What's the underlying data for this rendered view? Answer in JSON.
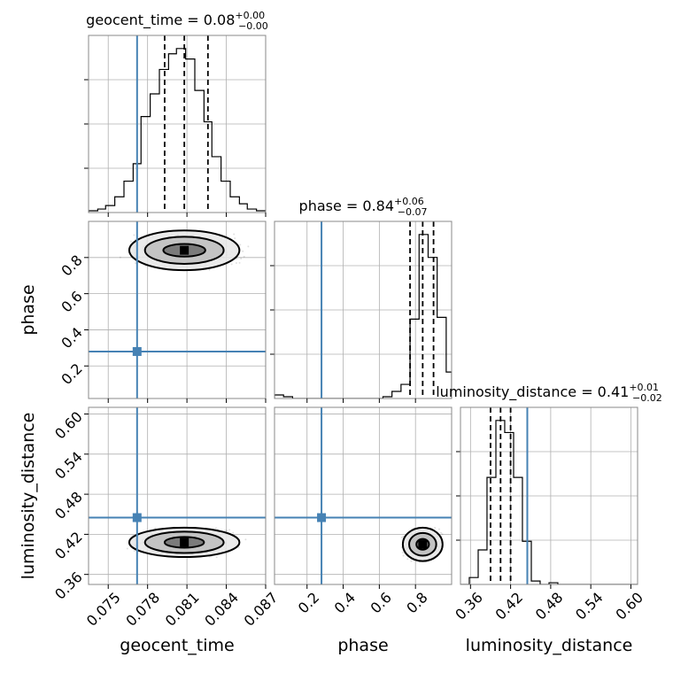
{
  "chart_data": {
    "type": "corner",
    "parameters": [
      "geocent_time",
      "phase",
      "luminosity_distance"
    ],
    "truths": {
      "geocent_time": 0.0772,
      "phase": 0.28,
      "luminosity_distance": 0.445
    },
    "titles": [
      {
        "param": "geocent_time",
        "text": "geocent_time = 0.08",
        "sup": "+0.00",
        "sub": "−0.00"
      },
      {
        "param": "phase",
        "text": "phase = 0.84",
        "sup": "+0.06",
        "sub": "−0.07"
      },
      {
        "param": "luminosity_distance",
        "text": "luminosity_distance = 0.41",
        "sup": "+0.01",
        "sub": "−0.02"
      }
    ],
    "axes": {
      "geocent_time": {
        "range": [
          0.0735,
          0.087
        ],
        "ticks": [
          "0.075",
          "0.078",
          "0.081",
          "0.084",
          "0.087"
        ],
        "tick_values": [
          0.075,
          0.078,
          0.081,
          0.084,
          0.087
        ]
      },
      "phase": {
        "range": [
          0.02,
          1.0
        ],
        "ticks": [
          "0.2",
          "0.4",
          "0.6",
          "0.8"
        ],
        "tick_values": [
          0.2,
          0.4,
          0.6,
          0.8
        ]
      },
      "luminosity_distance": {
        "range": [
          0.345,
          0.61
        ],
        "ticks": [
          "0.36",
          "0.42",
          "0.48",
          "0.54",
          "0.60"
        ],
        "tick_values": [
          0.36,
          0.42,
          0.48,
          0.54,
          0.6
        ]
      }
    },
    "diag": [
      {
        "param": "geocent_time",
        "quantiles": [
          0.0793,
          0.0808,
          0.0826
        ],
        "edges": [
          0.0735,
          0.0742,
          0.0748,
          0.0755,
          0.0762,
          0.0769,
          0.0775,
          0.0782,
          0.0789,
          0.0796,
          0.0802,
          0.0809,
          0.0816,
          0.0823,
          0.0829,
          0.0836,
          0.0843,
          0.085,
          0.0856,
          0.0863,
          0.087
        ],
        "counts": [
          1,
          2,
          4,
          9,
          18,
          28,
          55,
          68,
          82,
          91,
          94,
          88,
          70,
          52,
          32,
          18,
          9,
          5,
          2,
          1
        ]
      },
      {
        "param": "phase",
        "quantiles": [
          0.77,
          0.84,
          0.9
        ],
        "edges": [
          0.02,
          0.07,
          0.12,
          0.17,
          0.22,
          0.27,
          0.32,
          0.37,
          0.42,
          0.47,
          0.52,
          0.57,
          0.62,
          0.67,
          0.72,
          0.77,
          0.82,
          0.87,
          0.92,
          0.97,
          1.0
        ],
        "counts": [
          2,
          1,
          0,
          0,
          0,
          0,
          0,
          0,
          0,
          0,
          0,
          0,
          1,
          4,
          8,
          45,
          93,
          80,
          46,
          15
        ]
      },
      {
        "param": "luminosity_distance",
        "quantiles": [
          0.39,
          0.405,
          0.42
        ],
        "edges": [
          0.345,
          0.3582,
          0.3715,
          0.3847,
          0.398,
          0.4112,
          0.4245,
          0.4377,
          0.451,
          0.4642,
          0.4775,
          0.4907,
          0.504,
          0.5172,
          0.5305,
          0.5437,
          0.557,
          0.5702,
          0.5835,
          0.5967,
          0.61
        ],
        "counts": [
          0,
          4,
          20,
          62,
          95,
          88,
          62,
          25,
          2,
          0,
          1,
          0,
          0,
          0,
          0,
          0,
          0,
          0,
          0,
          0
        ]
      }
    ],
    "pairs": [
      {
        "x": "geocent_time",
        "y": "phase",
        "center": [
          0.0808,
          0.84
        ],
        "levels": [
          {
            "rx": 0.0042,
            "ry": 0.11
          },
          {
            "rx": 0.003,
            "ry": 0.075
          },
          {
            "rx": 0.0016,
            "ry": 0.035
          }
        ]
      },
      {
        "x": "geocent_time",
        "y": "luminosity_distance",
        "center": [
          0.0808,
          0.408
        ],
        "levels": [
          {
            "rx": 0.0042,
            "ry": 0.022
          },
          {
            "rx": 0.003,
            "ry": 0.016
          },
          {
            "rx": 0.0015,
            "ry": 0.008
          }
        ]
      },
      {
        "x": "phase",
        "y": "luminosity_distance",
        "center": [
          0.84,
          0.405
        ],
        "levels": [
          {
            "rx": 0.11,
            "ry": 0.025
          },
          {
            "rx": 0.075,
            "ry": 0.017
          },
          {
            "rx": 0.035,
            "ry": 0.008
          }
        ]
      }
    ],
    "grid": true,
    "colors": {
      "truth": "#4682b4",
      "contour": "#000000",
      "hist": "#000000",
      "grid": "#b0b0b0"
    }
  }
}
